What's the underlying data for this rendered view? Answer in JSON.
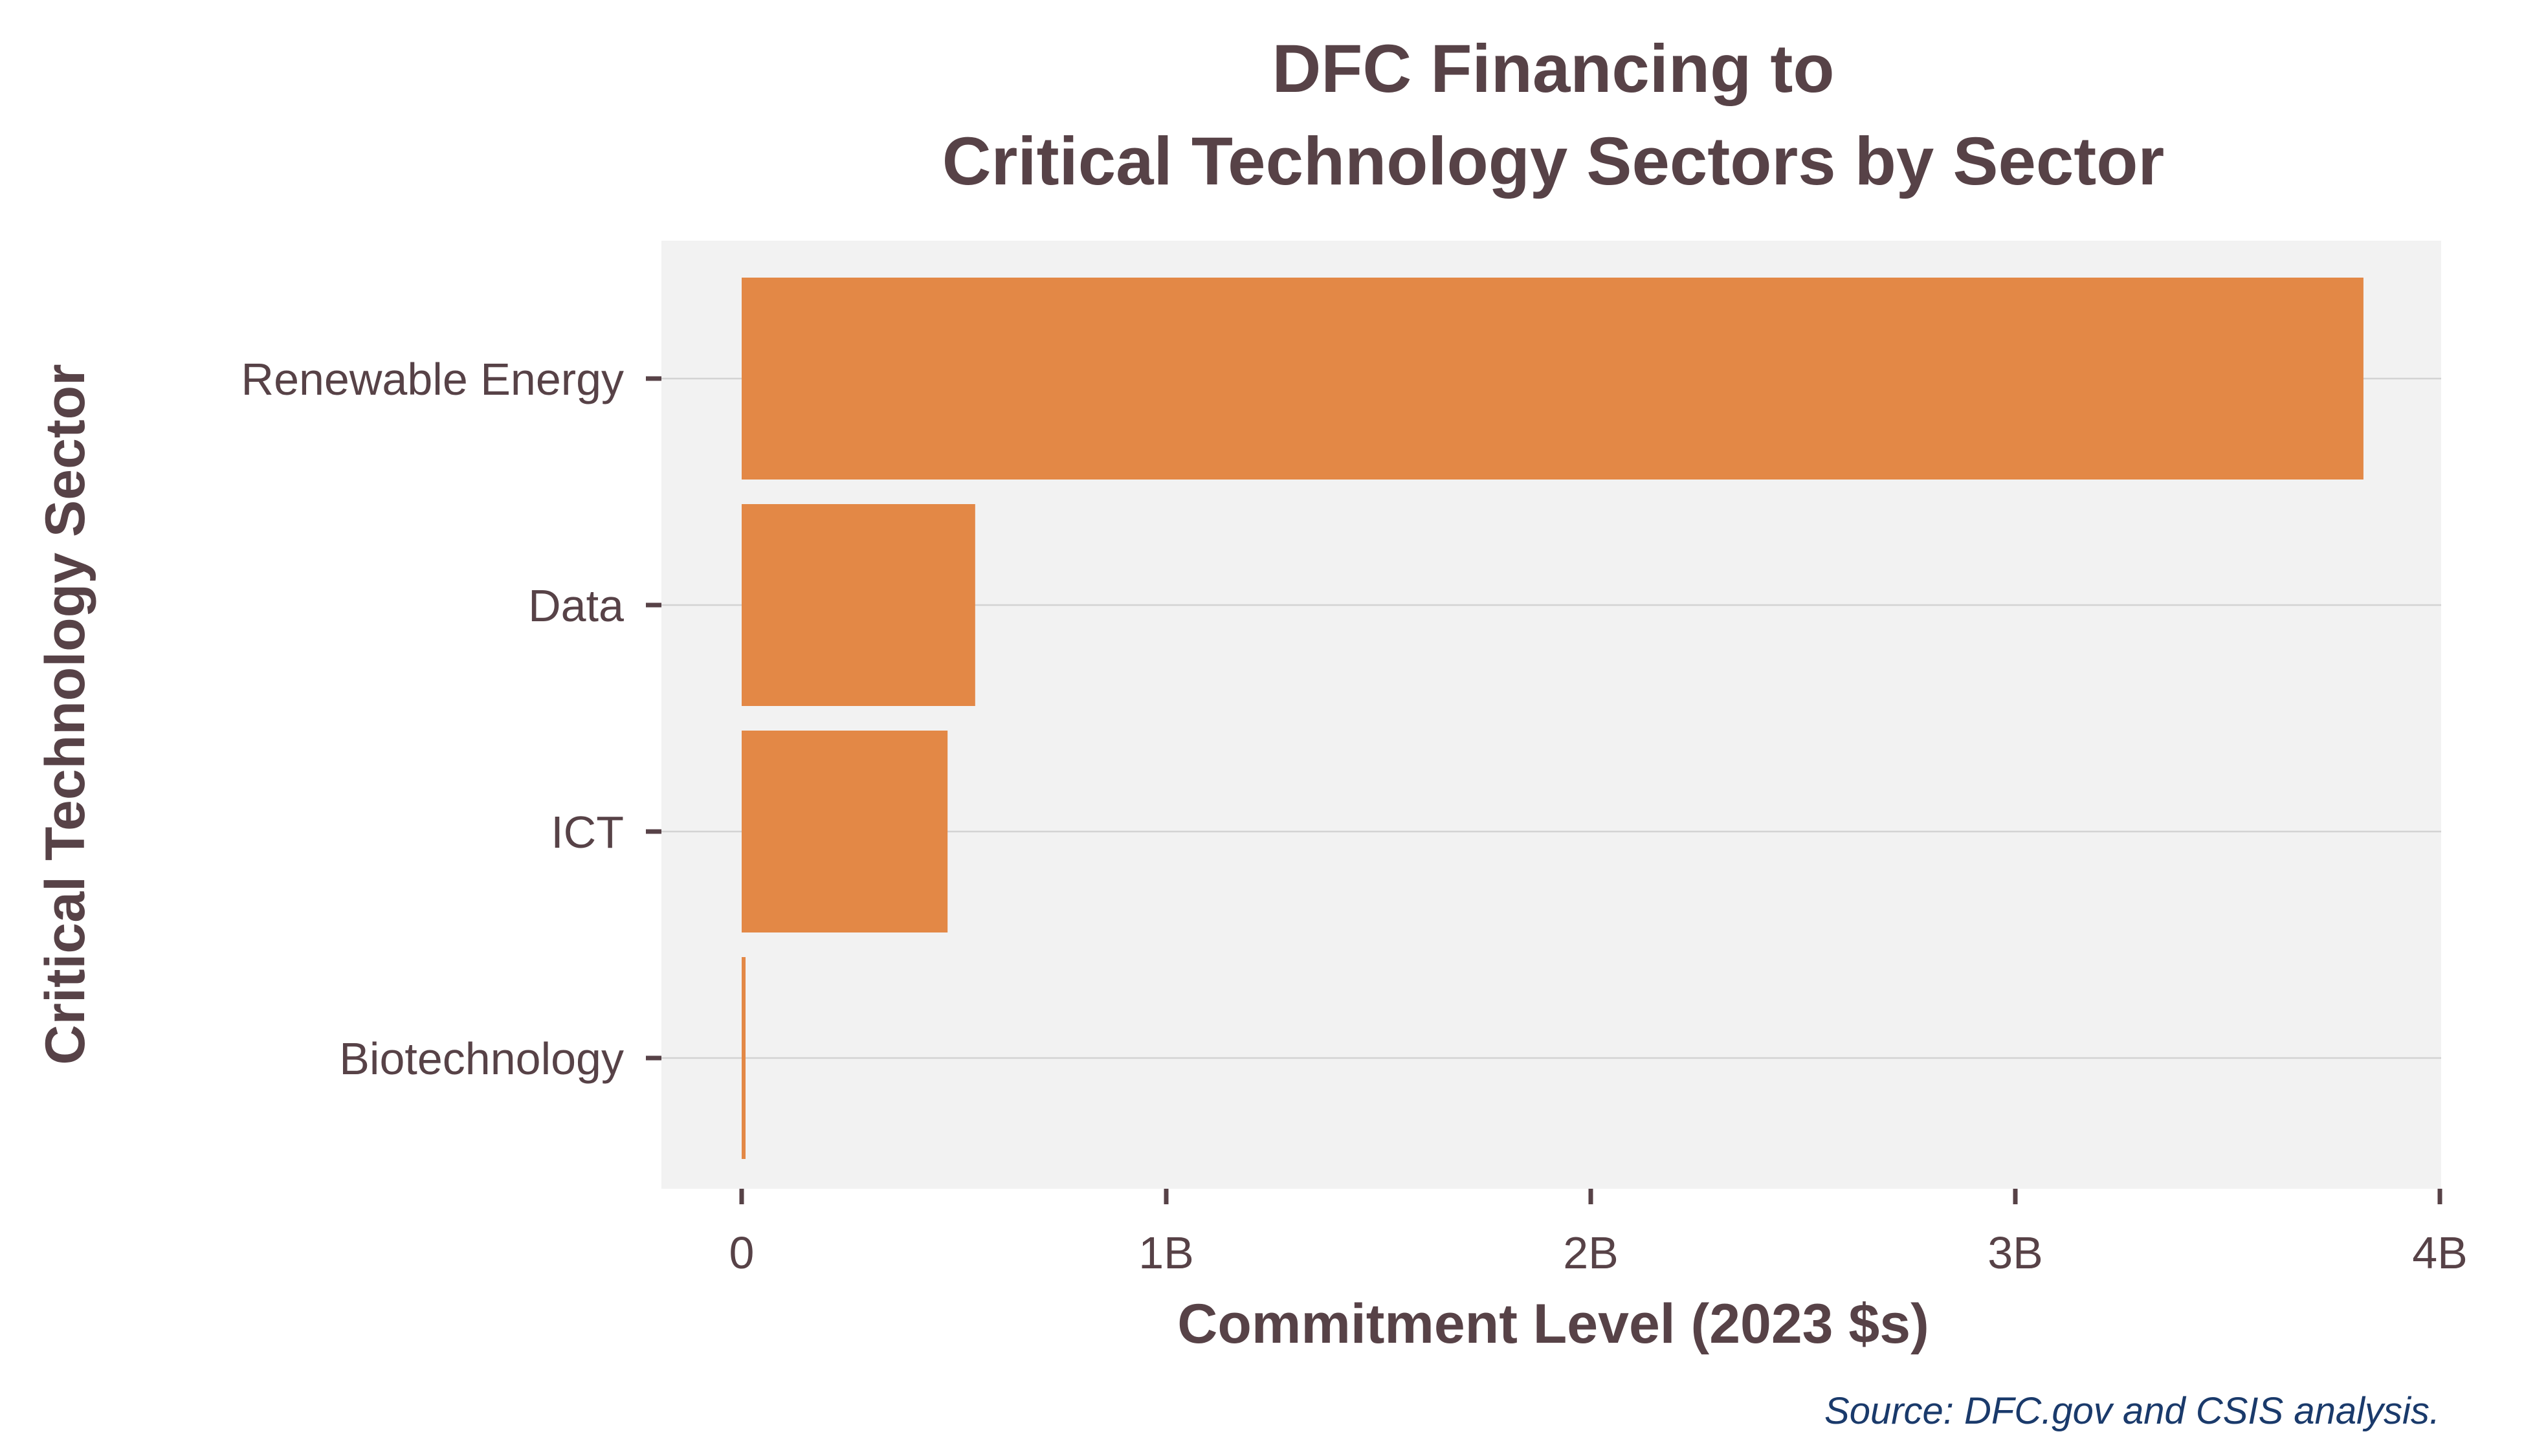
{
  "chart_data": {
    "type": "bar",
    "orientation": "horizontal",
    "title": [
      "DFC Financing to",
      "Critical Technology Sectors by Sector"
    ],
    "xlabel": "Commitment Level (2023 $s)",
    "ylabel": "Critical Technology Sector",
    "categories": [
      "Renewable Energy",
      "Data",
      "ICT",
      "Biotechnology"
    ],
    "values": [
      3820000000,
      550000000,
      485000000,
      8000000
    ],
    "xlim": [
      0,
      4000000000
    ],
    "xticks": [
      0,
      1000000000,
      2000000000,
      3000000000,
      4000000000
    ],
    "xtick_labels": [
      "0",
      "1B",
      "2B",
      "3B",
      "4B"
    ],
    "grid": "horizontal",
    "legend": "none",
    "source": "Source:  DFC.gov and CSIS analysis."
  },
  "colors": {
    "bar": "#e38846",
    "panel_bg": "#f2f2f2",
    "gridline": "#d3d3d3",
    "text": "#574247",
    "source_text": "#1a3a6b"
  }
}
